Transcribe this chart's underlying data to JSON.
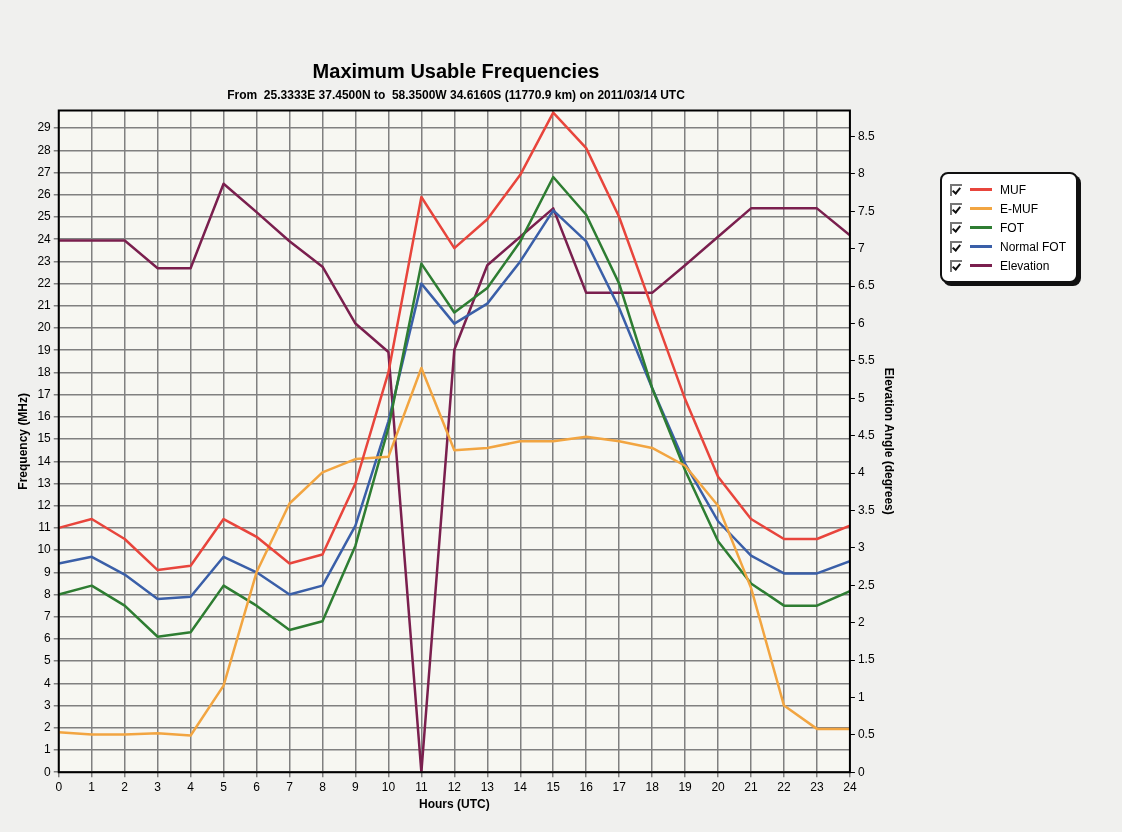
{
  "chart_data": {
    "type": "line",
    "title": "Maximum Usable Frequencies",
    "subtitle": "From  25.3333E 37.4500N to  58.3500W 34.6160S (11770.9 km) on 2011/03/14 UTC",
    "xlabel": "Hours (UTC)",
    "ylabel": "Frequency (MHz)",
    "y2label": "Elevation Angle (degrees)",
    "x": [
      0,
      1,
      2,
      3,
      4,
      5,
      6,
      7,
      8,
      9,
      10,
      11,
      12,
      13,
      14,
      15,
      16,
      17,
      18,
      19,
      20,
      21,
      22,
      23,
      24
    ],
    "xlim": [
      0,
      24
    ],
    "xticks": [
      0,
      1,
      2,
      3,
      4,
      5,
      6,
      7,
      8,
      9,
      10,
      11,
      12,
      13,
      14,
      15,
      16,
      17,
      18,
      19,
      20,
      21,
      22,
      23,
      24
    ],
    "ylim": [
      0,
      29.8
    ],
    "yticks": [
      0,
      1,
      2,
      3,
      4,
      5,
      6,
      7,
      8,
      9,
      10,
      11,
      12,
      13,
      14,
      15,
      16,
      17,
      18,
      19,
      20,
      21,
      22,
      23,
      24,
      25,
      26,
      27,
      28,
      29
    ],
    "y2lim": [
      0,
      8.85
    ],
    "y2ticks": [
      0,
      0.5,
      1,
      1.5,
      2,
      2.5,
      3,
      3.5,
      4,
      4.5,
      5,
      5.5,
      6,
      6.5,
      7,
      7.5,
      8,
      8.5
    ],
    "grid": true,
    "legend": "top right",
    "marker": "none",
    "line_style": "solid",
    "series": [
      {
        "name": "MUF",
        "color": "#e8453c",
        "values": [
          11,
          11.4,
          10.5,
          9.1,
          9.3,
          11.4,
          10.6,
          9.4,
          9.8,
          13,
          18,
          25.9,
          23.6,
          24.9,
          26.9,
          29.7,
          28.1,
          25,
          20.9,
          16.8,
          13.3,
          11.4,
          10.5,
          10.5,
          11.1
        ]
      },
      {
        "name": "E-MUF",
        "color": "#f2a541",
        "values": [
          1.8,
          1.7,
          1.7,
          1.75,
          1.65,
          3.9,
          9,
          12.1,
          13.5,
          14.1,
          14.2,
          18.2,
          14.5,
          14.6,
          14.9,
          14.9,
          15.1,
          14.9,
          14.6,
          13.8,
          12,
          8.3,
          3,
          1.95,
          1.95
        ]
      },
      {
        "name": "FOT",
        "color": "#2e7d32",
        "values": [
          8,
          8.4,
          7.5,
          6.1,
          6.3,
          8.4,
          7.5,
          6.4,
          6.8,
          10.2,
          15.5,
          22.9,
          20.7,
          21.8,
          23.9,
          26.8,
          25.1,
          22,
          17.3,
          13.6,
          10.4,
          8.5,
          7.5,
          7.5,
          8.15
        ]
      },
      {
        "name": "Normal FOT",
        "color": "#3a5fa8",
        "values": [
          9.4,
          9.7,
          8.9,
          7.8,
          7.9,
          9.7,
          9,
          8,
          8.4,
          11.1,
          15.8,
          22,
          20.2,
          21.1,
          23,
          25.3,
          23.9,
          20.9,
          17.3,
          13.9,
          11.3,
          9.75,
          8.95,
          8.95,
          9.5
        ]
      },
      {
        "name": "Elevation",
        "color": "#7a1f4e",
        "axis": "y2",
        "values": [
          7.11,
          7.11,
          7.11,
          6.74,
          6.74,
          7.87,
          7.49,
          7.1,
          6.76,
          6,
          5.62,
          0,
          5.65,
          6.78,
          7.16,
          7.54,
          6.41,
          6.41,
          6.41,
          6.78,
          7.16,
          7.54,
          7.54,
          7.54,
          7.18
        ]
      }
    ]
  }
}
